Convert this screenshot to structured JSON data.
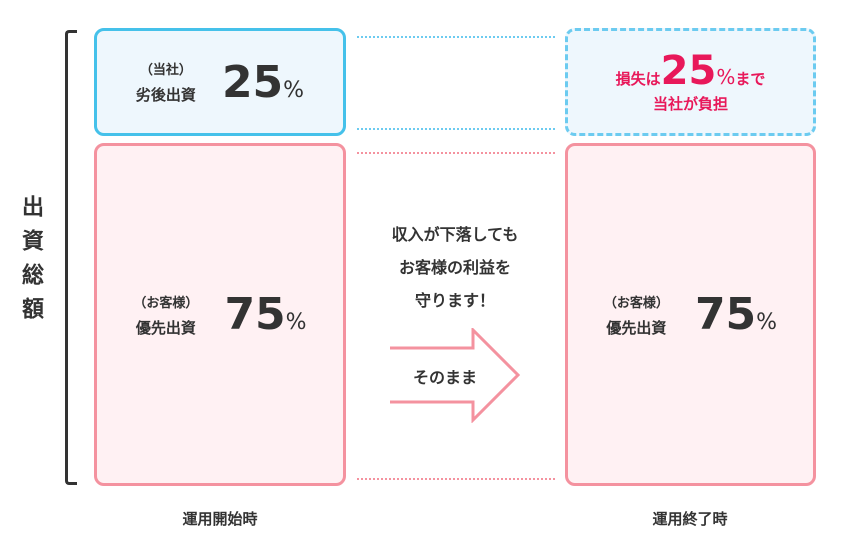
{
  "total_label": "出資総額",
  "start": {
    "label": "運用開始時",
    "junior": {
      "sub": "（当社）",
      "name": "劣後出資",
      "value": "25",
      "unit": "%"
    },
    "senior": {
      "sub": "（お客様）",
      "name": "優先出資",
      "value": "75",
      "unit": "%"
    }
  },
  "end": {
    "label": "運用終了時",
    "loss": {
      "pre": "損失は",
      "value": "25",
      "unit": "%",
      "post": "まで",
      "line2": "当社が負担"
    },
    "senior": {
      "sub": "（お客様）",
      "name": "優先出資",
      "value": "75",
      "unit": "%"
    }
  },
  "middle": {
    "message": [
      "収入が下落しても",
      "お客様の利益を",
      "守ります！"
    ],
    "arrow_label": "そのまま"
  },
  "colors": {
    "blue": "#45c1ea",
    "pink": "#f4929f",
    "red": "#e8185a",
    "text": "#333333"
  }
}
